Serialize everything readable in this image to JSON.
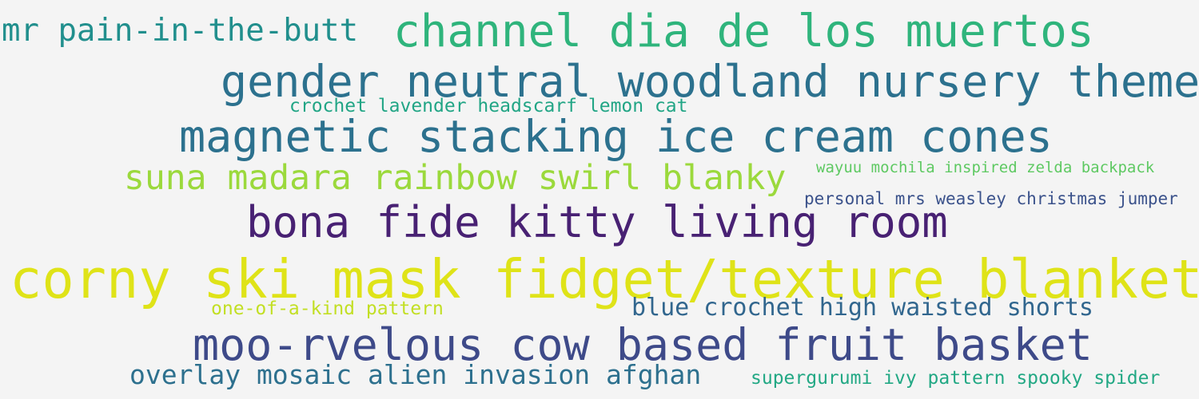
{
  "words": [
    {
      "text": "mr pain-in-the-butt",
      "color": "#218f8d"
    },
    {
      "text": "channel dia de los muertos",
      "color": "#2fb47c"
    },
    {
      "text": "gender neutral woodland nursery theme",
      "color": "#2c718e"
    },
    {
      "text": "crochet lavender headscarf lemon cat",
      "color": "#21a585"
    },
    {
      "text": "magnetic stacking ice cream cones",
      "color": "#2c718e"
    },
    {
      "text": "suna madara rainbow swirl blanky",
      "color": "#9bd93c"
    },
    {
      "text": "wayuu mochila inspired zelda backpack",
      "color": "#5ec962"
    },
    {
      "text": "personal mrs weasley christmas jumper",
      "color": "#3b528b"
    },
    {
      "text": "bona fide kitty living room",
      "color": "#482173"
    },
    {
      "text": "corny ski mask fidget/texture blanket",
      "color": "#dfe318"
    },
    {
      "text": "one-of-a-kind pattern",
      "color": "#c2df23"
    },
    {
      "text": "blue crochet high waisted shorts",
      "color": "#31668e"
    },
    {
      "text": "moo-rvelous cow based fruit basket",
      "color": "#3e4a89"
    },
    {
      "text": "overlay mosaic alien invasion afghan",
      "color": "#2d708e"
    },
    {
      "text": "supergurumi ivy pattern spooky spider",
      "color": "#22a884"
    }
  ]
}
